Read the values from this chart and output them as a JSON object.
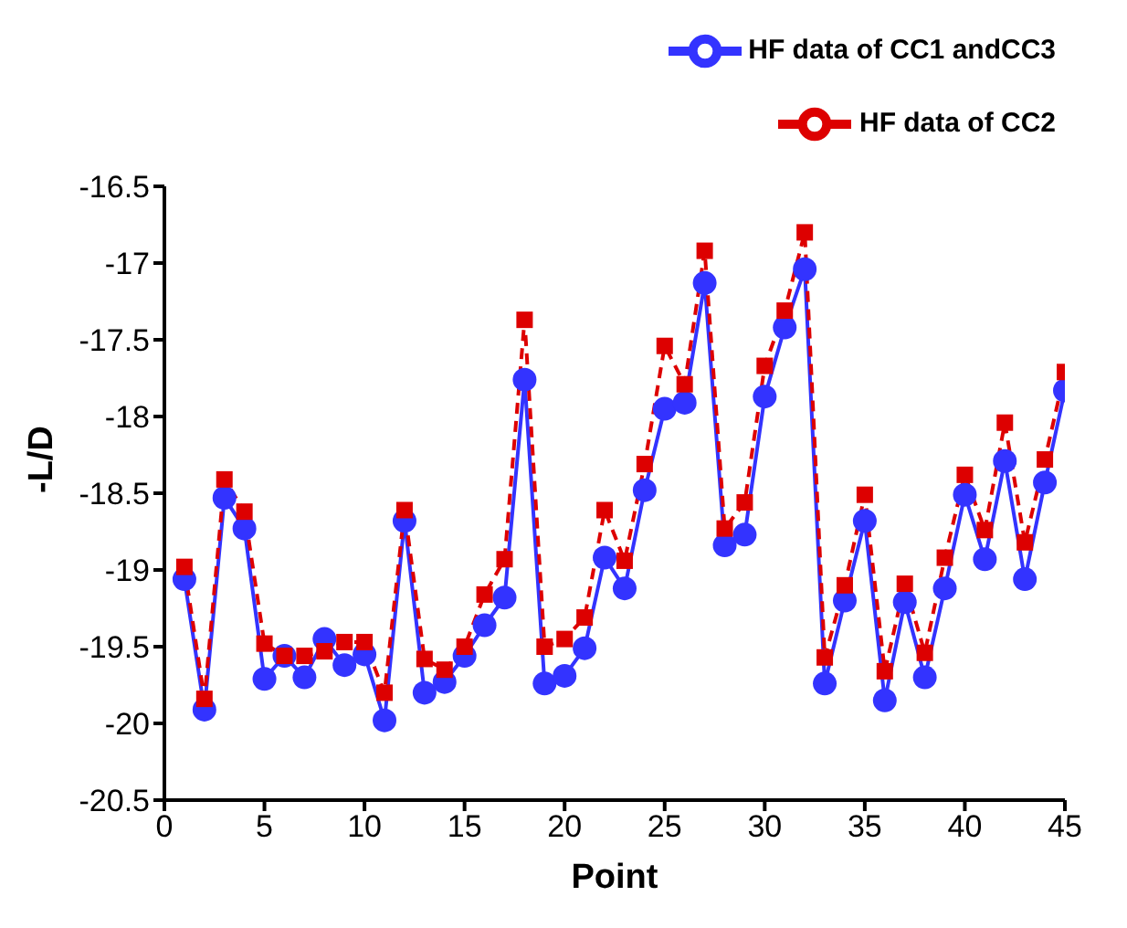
{
  "chart_data": {
    "type": "line",
    "xlabel": "Point",
    "ylabel": "-L/D",
    "x": [
      1,
      2,
      3,
      4,
      5,
      6,
      7,
      8,
      9,
      10,
      11,
      12,
      13,
      14,
      15,
      16,
      17,
      18,
      19,
      20,
      21,
      22,
      23,
      24,
      25,
      26,
      27,
      28,
      29,
      30,
      31,
      32,
      33,
      34,
      35,
      36,
      37,
      38,
      39,
      40,
      41,
      42,
      43,
      44,
      45
    ],
    "series": [
      {
        "name": "HF data of CC1 andCC3",
        "color": "#3333ff",
        "marker": "circle",
        "line_style": "solid",
        "values": [
          -19.06,
          -19.91,
          -18.53,
          -18.73,
          -19.71,
          -19.56,
          -19.7,
          -19.45,
          -19.62,
          -19.55,
          -19.98,
          -18.68,
          -19.8,
          -19.73,
          -19.56,
          -19.36,
          -19.18,
          -17.76,
          -19.74,
          -19.69,
          -19.51,
          -18.92,
          -19.12,
          -18.48,
          -17.95,
          -17.91,
          -17.13,
          -18.84,
          -18.77,
          -17.87,
          -17.42,
          -17.04,
          -19.74,
          -19.2,
          -18.68,
          -19.85,
          -19.21,
          -19.7,
          -19.12,
          -18.51,
          -18.93,
          -18.29,
          -19.06,
          -18.43,
          -17.83
        ]
      },
      {
        "name": "HF data of CC2",
        "color": "#dd0000",
        "marker": "square",
        "line_style": "dashed",
        "values": [
          -18.98,
          -19.84,
          -18.41,
          -18.62,
          -19.48,
          -19.56,
          -19.56,
          -19.53,
          -19.47,
          -19.47,
          -19.8,
          -18.61,
          -19.58,
          -19.65,
          -19.5,
          -19.16,
          -18.93,
          -17.37,
          -19.5,
          -19.45,
          -19.31,
          -18.61,
          -18.94,
          -18.31,
          -17.54,
          -17.79,
          -16.92,
          -18.73,
          -18.56,
          -17.67,
          -17.31,
          -16.8,
          -19.57,
          -19.1,
          -18.51,
          -19.66,
          -19.09,
          -19.54,
          -18.92,
          -18.38,
          -18.74,
          -18.04,
          -18.82,
          -18.28,
          -17.71
        ]
      }
    ],
    "xlim": [
      0,
      45
    ],
    "xticks": [
      0,
      5,
      10,
      15,
      20,
      25,
      30,
      35,
      40,
      45
    ],
    "ylim": [
      -20.5,
      -16.5
    ],
    "yticks": [
      -20.5,
      -20,
      -19.5,
      -19,
      -18.5,
      -18,
      -17.5,
      -17,
      -16.5
    ],
    "grid": false,
    "legend": "top right"
  }
}
